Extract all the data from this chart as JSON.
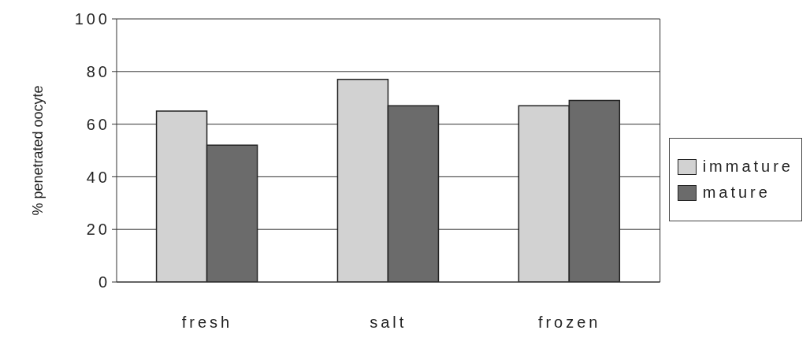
{
  "chart_data": {
    "type": "bar",
    "ylabel": "% penetrated oocyte",
    "categories": [
      "fresh",
      "salt",
      "frozen"
    ],
    "series": [
      {
        "name": "immature",
        "color": "#d2d2d2",
        "values": [
          65,
          77,
          67
        ]
      },
      {
        "name": "mature",
        "color": "#6b6b6b",
        "values": [
          52,
          67,
          69
        ]
      }
    ],
    "ylim": [
      0,
      100
    ],
    "yticks": [
      0,
      20,
      40,
      60,
      80,
      100
    ],
    "grid": "y",
    "legend": "right"
  }
}
